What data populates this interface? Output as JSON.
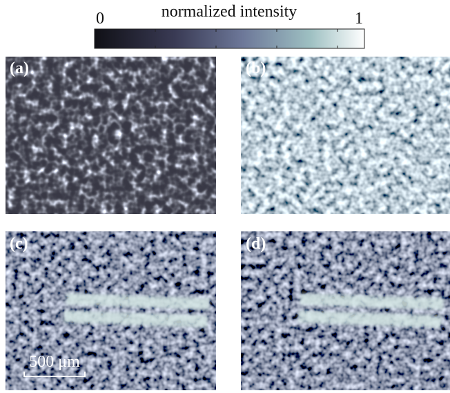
{
  "colorbar": {
    "label": "normalized intensity",
    "min_label": "0",
    "max_label": "1"
  },
  "panels": [
    {
      "label": "(a)"
    },
    {
      "label": "(b)"
    },
    {
      "label": "(c)"
    },
    {
      "label": "(d)"
    }
  ],
  "scale_bar": {
    "label": "500 μm"
  }
}
